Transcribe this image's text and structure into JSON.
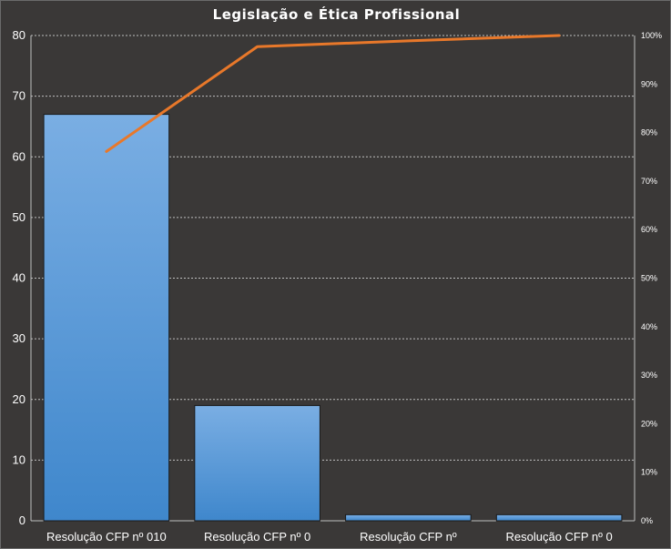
{
  "chart_data": {
    "type": "bar",
    "title": "Legislação e Ética Profissional",
    "categories": [
      "Resolução CFP nº 010",
      "Resolução CFP nº 0",
      "Resolução CFP nº",
      "Resolução CFP nº 0"
    ],
    "series": [
      {
        "type": "bar",
        "axis": "left",
        "values": [
          67,
          19,
          1,
          1
        ]
      },
      {
        "type": "line",
        "axis": "right",
        "values": [
          76.1,
          97.7,
          98.9,
          100
        ]
      }
    ],
    "ylim": [
      0,
      80
    ],
    "yticks": [
      0,
      10,
      20,
      30,
      40,
      50,
      60,
      70,
      80
    ],
    "y2lim": [
      0,
      100
    ],
    "y2ticks": [
      "0%",
      "10%",
      "20%",
      "30%",
      "40%",
      "50%",
      "60%",
      "70%",
      "80%",
      "90%",
      "100%"
    ],
    "grid": true,
    "colors": {
      "background": "#3a3837",
      "bar_top": "#7aaee3",
      "bar_bottom": "#3f87cc",
      "bar_stroke": "#1a1a1a",
      "line": "#e8782a",
      "grid": "#bfbfbf",
      "text": "#ffffff"
    }
  }
}
